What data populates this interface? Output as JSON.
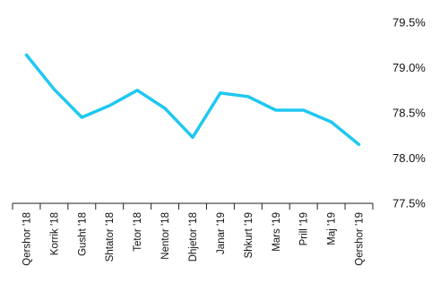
{
  "chart_data": {
    "type": "line",
    "title": "",
    "xlabel": "",
    "ylabel": "",
    "categories": [
      "Qershor '18",
      "Korrik '18",
      "Gusht '18",
      "Shtator '18",
      "Tetor '18",
      "Nentor '18",
      "Dhjetor '18",
      "Janar '19",
      "Shkurt '19",
      "Mars '19",
      "Prill '19",
      "Maj '19",
      "Qershor '19"
    ],
    "series": [
      {
        "values": [
          79.14,
          78.76,
          78.45,
          78.58,
          78.75,
          78.55,
          78.23,
          78.72,
          78.68,
          78.53,
          78.53,
          78.4,
          78.15
        ]
      }
    ],
    "ylim": [
      77.5,
      79.5
    ],
    "yticks": [
      "79.5%",
      "79.0%",
      "78.5%",
      "78.0%",
      "77.5%"
    ],
    "ytick_values": [
      79.5,
      79.0,
      78.5,
      78.0,
      77.5
    ],
    "line_color": "#1ec8f0",
    "grid": false,
    "legend": "none",
    "y_axis_position": "right"
  }
}
